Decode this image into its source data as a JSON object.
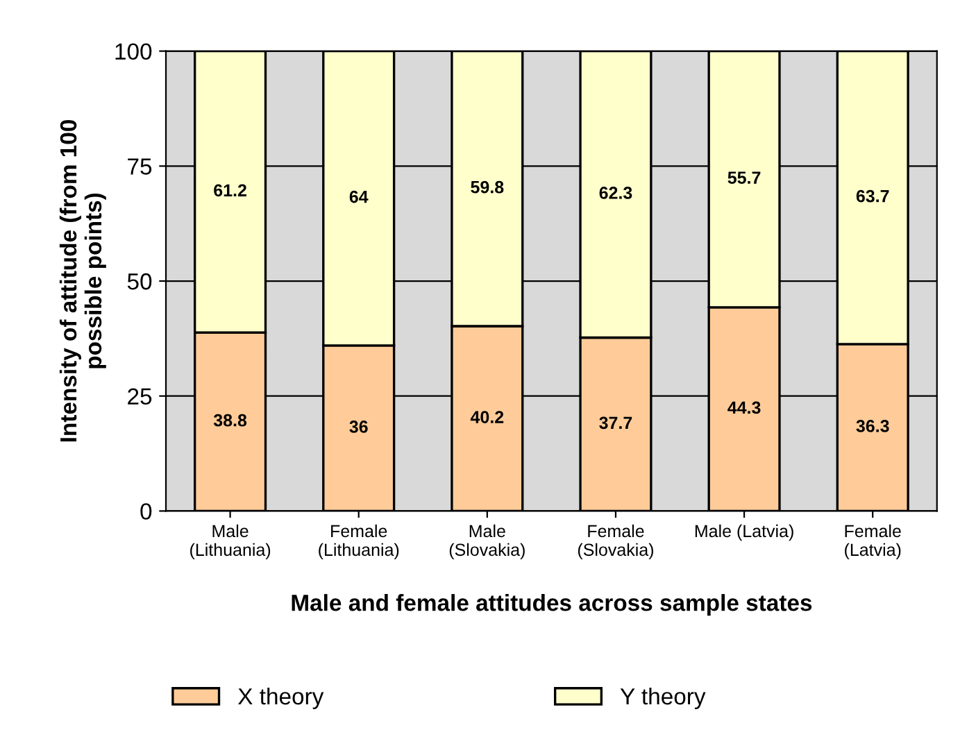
{
  "chart_data": {
    "type": "bar",
    "stacked": true,
    "xlabel": "Male and female attitudes across sample states",
    "ylabel": "Intensity of attitude (from 100\npossible points)",
    "categories": [
      "Male\n(Lithuania)",
      "Female\n(Lithuania)",
      "Male\n(Slovakia)",
      "Female\n(Slovakia)",
      "Male (Latvia)",
      "Female\n(Latvia)"
    ],
    "series": [
      {
        "name": "X theory",
        "color": "#ffcc99",
        "values": [
          38.8,
          36,
          40.2,
          37.7,
          44.3,
          36.3
        ]
      },
      {
        "name": "Y theory",
        "color": "#ffffcc",
        "values": [
          61.2,
          64,
          59.8,
          62.3,
          55.7,
          63.7
        ]
      }
    ],
    "ylim": [
      0,
      100
    ],
    "yticks": [
      0,
      25,
      50,
      75,
      100
    ],
    "grid": "y",
    "legend": "bottom",
    "data_labels": true
  }
}
